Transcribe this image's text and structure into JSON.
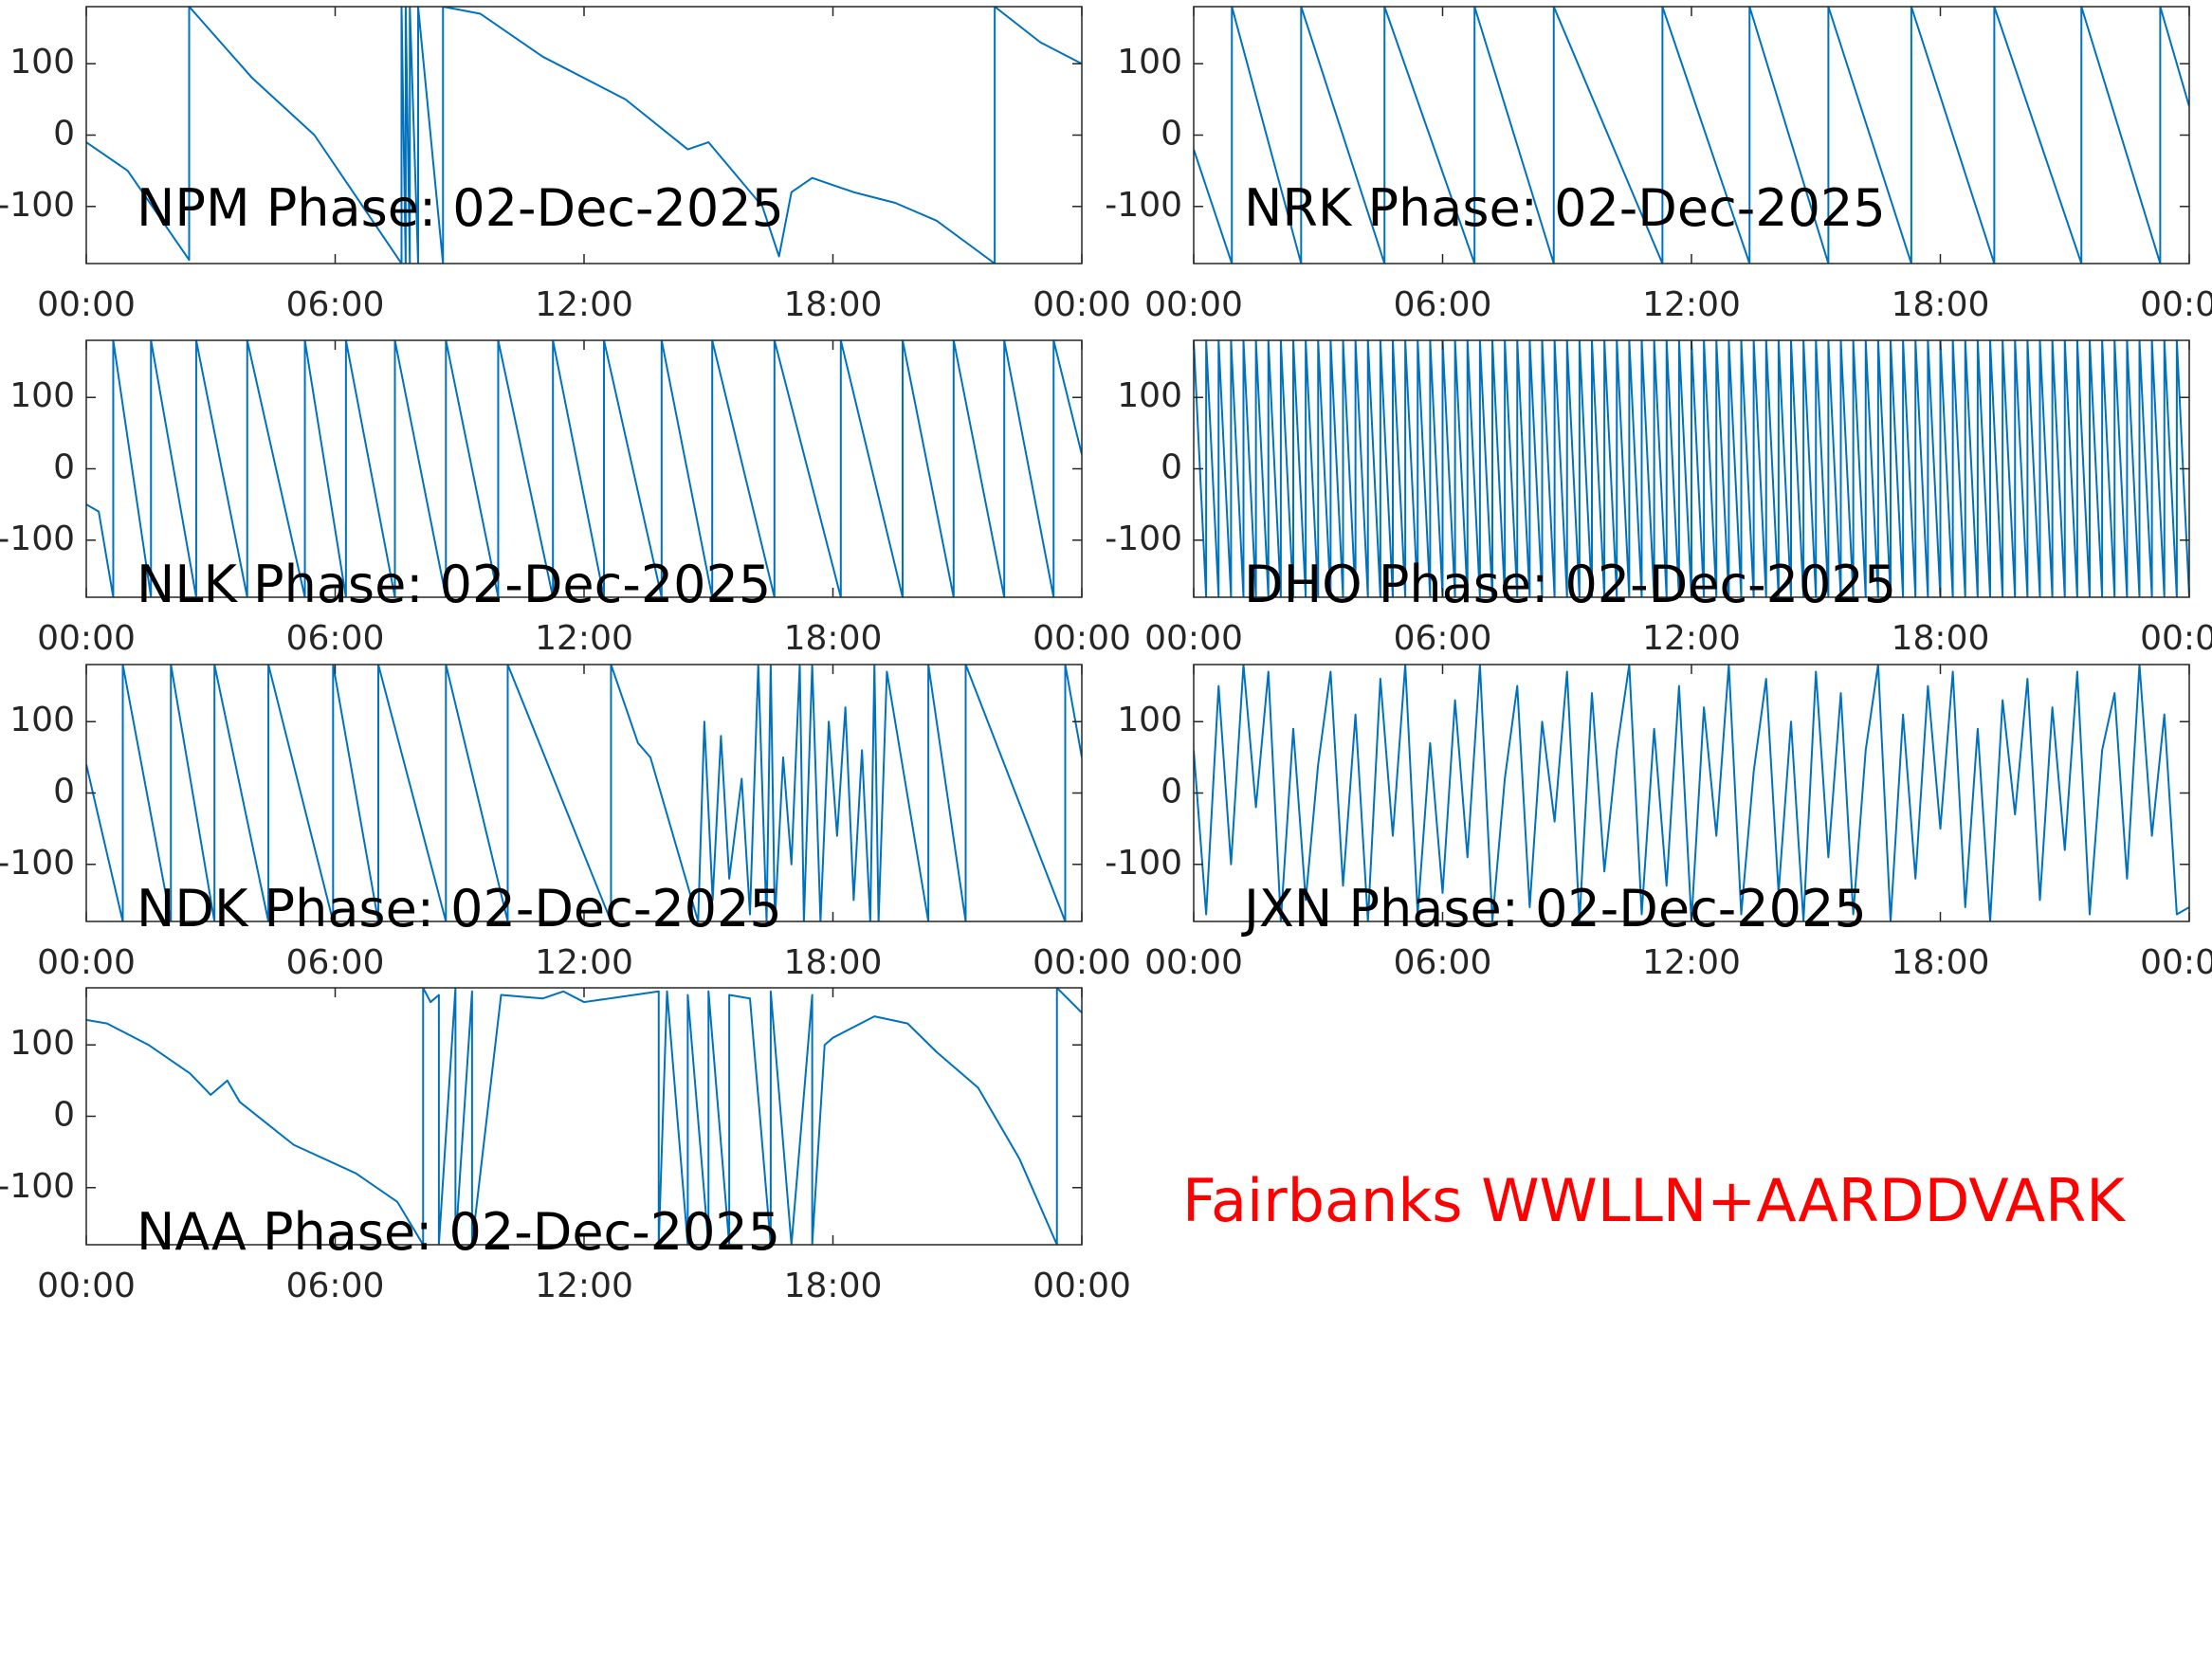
{
  "chart_data": [
    {
      "type": "line",
      "title": "NPM Phase: 02-Dec-2025",
      "color": "#0072bd",
      "xlim": [
        0,
        24
      ],
      "ylim": [
        -180,
        180
      ],
      "xticks": [
        {
          "value": 0,
          "label": "00:00"
        },
        {
          "value": 6,
          "label": "06:00"
        },
        {
          "value": 12,
          "label": "12:00"
        },
        {
          "value": 18,
          "label": "18:00"
        },
        {
          "value": 24,
          "label": "00:00"
        }
      ],
      "yticks": [
        -100,
        0,
        100
      ],
      "x": [
        0,
        1,
        2.48,
        2.48,
        4,
        5.5,
        7.6,
        7.6,
        7.7,
        7.7,
        7.8,
        7.8,
        8,
        8,
        8.6,
        8.6,
        9.5,
        11,
        13,
        14.5,
        15,
        16.3,
        16.7,
        17,
        17.5,
        18.5,
        19.5,
        20.5,
        21.9,
        21.9,
        23,
        24
      ],
      "values": [
        -10,
        -50,
        -175,
        180,
        80,
        0,
        -180,
        180,
        -180,
        180,
        -180,
        180,
        -180,
        180,
        -180,
        180,
        170,
        110,
        50,
        -20,
        -10,
        -100,
        -170,
        -80,
        -60,
        -80,
        -95,
        -120,
        -180,
        180,
        130,
        100
      ]
    },
    {
      "type": "line",
      "title": "NRK Phase: 02-Dec-2025",
      "color": "#0072bd",
      "xlim": [
        0,
        24
      ],
      "ylim": [
        -180,
        180
      ],
      "xticks": [
        {
          "value": 0,
          "label": "00:00"
        },
        {
          "value": 6,
          "label": "06:00"
        },
        {
          "value": 12,
          "label": "12:00"
        },
        {
          "value": 18,
          "label": "18:00"
        },
        {
          "value": 24,
          "label": "00:00"
        }
      ],
      "yticks": [
        -100,
        0,
        100
      ],
      "x": [
        0,
        0.92,
        0.92,
        2.59,
        2.59,
        4.6,
        4.6,
        6.77,
        6.77,
        8.68,
        8.68,
        11.3,
        11.3,
        13.4,
        13.4,
        15.3,
        15.3,
        17.3,
        17.3,
        19.3,
        19.3,
        21.4,
        21.4,
        23.3,
        23.3,
        24
      ],
      "values": [
        -20,
        -180,
        180,
        -180,
        180,
        -180,
        180,
        -180,
        180,
        -180,
        180,
        -180,
        180,
        -180,
        180,
        -180,
        180,
        -180,
        180,
        -180,
        180,
        -180,
        180,
        -180,
        180,
        40
      ]
    },
    {
      "type": "line",
      "title": "NLK Phase: 02-Dec-2025",
      "color": "#0072bd",
      "xlim": [
        0,
        24
      ],
      "ylim": [
        -180,
        180
      ],
      "xticks": [
        {
          "value": 0,
          "label": "00:00"
        },
        {
          "value": 6,
          "label": "06:00"
        },
        {
          "value": 12,
          "label": "12:00"
        },
        {
          "value": 18,
          "label": "18:00"
        },
        {
          "value": 24,
          "label": "00:00"
        }
      ],
      "yticks": [
        -100,
        0,
        100
      ],
      "x": [
        0,
        0.3,
        0.65,
        0.65,
        1.56,
        1.56,
        2.65,
        2.65,
        3.88,
        3.88,
        5.27,
        5.27,
        6.26,
        6.26,
        7.44,
        7.44,
        8.67,
        8.67,
        9.93,
        9.93,
        11.25,
        11.25,
        12.48,
        12.48,
        13.87,
        13.87,
        15.09,
        15.09,
        16.59,
        16.59,
        18.19,
        18.19,
        19.68,
        19.68,
        20.91,
        20.91,
        22.13,
        22.13,
        23.32,
        23.32,
        24
      ],
      "values": [
        -50,
        -60,
        -180,
        180,
        -180,
        180,
        -180,
        180,
        -180,
        180,
        -180,
        180,
        -180,
        180,
        -180,
        180,
        -180,
        180,
        -180,
        180,
        -180,
        180,
        -180,
        180,
        -180,
        180,
        -180,
        180,
        -180,
        180,
        -180,
        180,
        -180,
        180,
        -180,
        180,
        -180,
        180,
        -180,
        180,
        20
      ]
    },
    {
      "type": "line",
      "title": "DHO Phase: 02-Dec-2025",
      "color": "#0072bd",
      "xlim": [
        0,
        24
      ],
      "ylim": [
        -180,
        180
      ],
      "xticks": [
        {
          "value": 0,
          "label": "00:00"
        },
        {
          "value": 6,
          "label": "06:00"
        },
        {
          "value": 12,
          "label": "12:00"
        },
        {
          "value": 18,
          "label": "18:00"
        },
        {
          "value": 24,
          "label": "00:00"
        }
      ],
      "yticks": [
        -100,
        0,
        100
      ],
      "x": [
        0,
        0.3,
        0.3,
        0.6,
        0.6,
        0.9,
        0.9,
        1.2,
        1.2,
        1.5,
        1.5,
        1.8,
        1.8,
        2.1,
        2.1,
        2.4,
        2.4,
        2.7,
        2.7,
        3,
        3,
        3.3,
        3.3,
        3.6,
        3.6,
        3.9,
        3.9,
        4.2,
        4.2,
        4.5,
        4.5,
        4.8,
        4.8,
        5.1,
        5.1,
        5.4,
        5.4,
        5.7,
        5.7,
        6,
        6,
        6.3,
        6.3,
        6.6,
        6.6,
        6.9,
        6.9,
        7.2,
        7.2,
        7.5,
        7.5,
        7.8,
        7.8,
        8.1,
        8.1,
        8.4,
        8.4,
        8.7,
        8.7,
        9,
        9,
        9.3,
        9.3,
        9.6,
        9.6,
        9.9,
        9.9,
        10.2,
        10.2,
        10.5,
        10.5,
        10.8,
        10.8,
        11.1,
        11.1,
        11.4,
        11.4,
        11.7,
        11.7,
        12,
        12,
        12.3,
        12.3,
        12.6,
        12.6,
        12.9,
        12.9,
        13.2,
        13.2,
        13.5,
        13.5,
        13.8,
        13.8,
        14.1,
        14.1,
        14.4,
        14.4,
        14.7,
        14.7,
        15,
        15,
        15.3,
        15.3,
        15.6,
        15.6,
        15.9,
        15.9,
        16.2,
        16.2,
        16.5,
        16.5,
        16.8,
        16.8,
        17.1,
        17.1,
        17.4,
        17.4,
        17.7,
        17.7,
        18,
        18,
        18.3,
        18.3,
        18.6,
        18.6,
        18.9,
        18.9,
        19.2,
        19.2,
        19.5,
        19.5,
        19.8,
        19.8,
        20.1,
        20.1,
        20.4,
        20.4,
        20.7,
        20.7,
        21,
        21,
        21.3,
        21.3,
        21.6,
        21.6,
        21.9,
        21.9,
        22.2,
        22.2,
        22.5,
        22.5,
        22.8,
        22.8,
        23.1,
        23.1,
        23.4,
        23.4,
        23.7,
        23.7,
        24
      ],
      "values": [
        180,
        -180,
        180,
        -180,
        180,
        -180,
        180,
        -180,
        180,
        -180,
        180,
        -180,
        180,
        -180,
        180,
        -180,
        180,
        -180,
        180,
        -180,
        180,
        -180,
        180,
        -180,
        180,
        -180,
        180,
        -180,
        180,
        -180,
        180,
        -180,
        180,
        -180,
        180,
        -180,
        180,
        -180,
        180,
        -180,
        180,
        -180,
        180,
        -180,
        180,
        -180,
        180,
        -180,
        180,
        -180,
        180,
        -180,
        180,
        -180,
        180,
        -180,
        180,
        -180,
        180,
        -180,
        180,
        -180,
        180,
        -180,
        180,
        -180,
        180,
        -180,
        180,
        -180,
        180,
        -180,
        180,
        -180,
        180,
        -180,
        180,
        -180,
        180,
        -180,
        180,
        -180,
        180,
        -180,
        180,
        -180,
        180,
        -180,
        180,
        -180,
        180,
        -180,
        180,
        -180,
        180,
        -180,
        180,
        -180,
        180,
        -180,
        180,
        -180,
        180,
        -180,
        180,
        -180,
        180,
        -180,
        180,
        -180,
        180,
        -180,
        180,
        -180,
        180,
        -180,
        180,
        -180,
        180,
        -180,
        180,
        -180,
        180,
        -180,
        180,
        -180,
        180,
        -180,
        180,
        -180,
        180,
        -180,
        180,
        -180,
        180,
        -180,
        180,
        -180,
        180,
        -180,
        180,
        -180,
        180,
        -180,
        180,
        -180,
        180,
        -180,
        180,
        -180,
        180,
        -180,
        180,
        -180,
        180,
        -180,
        180,
        -180,
        180,
        -180
      ]
    },
    {
      "type": "line",
      "title": "NDK Phase: 02-Dec-2025",
      "color": "#0072bd",
      "xlim": [
        0,
        24
      ],
      "ylim": [
        -180,
        180
      ],
      "xticks": [
        {
          "value": 0,
          "label": "00:00"
        },
        {
          "value": 6,
          "label": "06:00"
        },
        {
          "value": 12,
          "label": "12:00"
        },
        {
          "value": 18,
          "label": "18:00"
        },
        {
          "value": 24,
          "label": "00:00"
        }
      ],
      "yticks": [
        -100,
        0,
        100
      ],
      "x": [
        0,
        0.88,
        0.88,
        2.04,
        2.04,
        3.09,
        3.09,
        4.39,
        4.39,
        5.95,
        5.95,
        7.04,
        7.04,
        8.67,
        8.67,
        10.16,
        10.16,
        12.65,
        12.65,
        13.3,
        13.6,
        14.75,
        14.9,
        15.1,
        15.3,
        15.5,
        15.8,
        16,
        16.2,
        16.4,
        16.5,
        16.6,
        16.8,
        17,
        17.2,
        17.3,
        17.5,
        17.7,
        17.9,
        18.1,
        18.3,
        18.5,
        18.7,
        18.9,
        19,
        19.1,
        19.3,
        20.3,
        20.3,
        21.2,
        21.2,
        23.6,
        23.6,
        24
      ],
      "values": [
        40,
        -180,
        180,
        -180,
        180,
        -180,
        180,
        -180,
        180,
        -180,
        180,
        -180,
        180,
        -180,
        180,
        -180,
        180,
        -180,
        180,
        70,
        50,
        -180,
        100,
        -150,
        80,
        -120,
        20,
        -170,
        180,
        -180,
        180,
        -180,
        50,
        -100,
        180,
        -180,
        180,
        -180,
        100,
        -60,
        120,
        -150,
        60,
        -180,
        180,
        -180,
        170,
        -180,
        180,
        -180,
        180,
        -180,
        180,
        50
      ]
    },
    {
      "type": "line",
      "title": "JXN Phase: 02-Dec-2025",
      "color": "#0072bd",
      "xlim": [
        0,
        24
      ],
      "ylim": [
        -180,
        180
      ],
      "xticks": [
        {
          "value": 0,
          "label": "00:00"
        },
        {
          "value": 6,
          "label": "06:00"
        },
        {
          "value": 12,
          "label": "12:00"
        },
        {
          "value": 18,
          "label": "18:00"
        },
        {
          "value": 24,
          "label": "00:00"
        }
      ],
      "yticks": [
        -100,
        0,
        100
      ],
      "x": [
        0,
        0.3,
        0.6,
        0.9,
        1.2,
        1.5,
        1.8,
        2.1,
        2.4,
        2.7,
        3,
        3.3,
        3.6,
        3.9,
        4.2,
        4.5,
        4.8,
        5.1,
        5.4,
        5.7,
        6,
        6.3,
        6.6,
        6.9,
        7.2,
        7.5,
        7.8,
        8.1,
        8.4,
        8.7,
        9,
        9.3,
        9.6,
        9.9,
        10.2,
        10.5,
        10.8,
        11.1,
        11.4,
        11.7,
        12,
        12.3,
        12.6,
        12.9,
        13.2,
        13.5,
        13.8,
        14.1,
        14.4,
        14.7,
        15,
        15.3,
        15.6,
        15.9,
        16.2,
        16.5,
        16.8,
        17.1,
        17.4,
        17.7,
        18,
        18.3,
        18.6,
        18.9,
        19.2,
        19.5,
        19.8,
        20.1,
        20.4,
        20.7,
        21,
        21.3,
        21.6,
        21.9,
        22.2,
        22.5,
        22.8,
        23.1,
        23.4,
        23.7,
        24
      ],
      "values": [
        60,
        -170,
        150,
        -100,
        180,
        -20,
        170,
        -180,
        90,
        -150,
        40,
        170,
        -130,
        110,
        -180,
        160,
        -60,
        180,
        -170,
        70,
        -140,
        130,
        -90,
        180,
        -180,
        20,
        150,
        -160,
        100,
        -40,
        170,
        -180,
        140,
        -110,
        60,
        180,
        -170,
        90,
        -130,
        150,
        -180,
        120,
        -60,
        180,
        -170,
        30,
        160,
        -140,
        100,
        -180,
        170,
        -90,
        140,
        -170,
        60,
        180,
        -180,
        110,
        -120,
        150,
        -50,
        170,
        -160,
        90,
        -180,
        130,
        -30,
        160,
        -150,
        120,
        -80,
        170,
        -170,
        60,
        140,
        -120,
        180,
        -60,
        110,
        -170,
        -160
      ]
    },
    {
      "type": "line",
      "title": "NAA Phase: 02-Dec-2025",
      "color": "#0072bd",
      "xlim": [
        0,
        24
      ],
      "ylim": [
        -180,
        180
      ],
      "xticks": [
        {
          "value": 0,
          "label": "00:00"
        },
        {
          "value": 6,
          "label": "06:00"
        },
        {
          "value": 12,
          "label": "12:00"
        },
        {
          "value": 18,
          "label": "18:00"
        },
        {
          "value": 24,
          "label": "00:00"
        }
      ],
      "yticks": [
        -100,
        0,
        100
      ],
      "x": [
        0,
        0.5,
        1.5,
        2.5,
        3,
        3.4,
        3.7,
        5,
        6.5,
        7.5,
        8.12,
        8.12,
        8.3,
        8.5,
        8.5,
        8.9,
        8.9,
        9.3,
        9.3,
        10,
        11,
        11.5,
        12,
        13.8,
        13.8,
        14,
        14.5,
        14.5,
        15,
        15,
        15.5,
        15.5,
        16,
        16.5,
        16.5,
        17,
        17.5,
        17.5,
        17.8,
        18,
        19,
        19.8,
        20.5,
        21.5,
        22.5,
        23.4,
        23.4,
        24
      ],
      "values": [
        135,
        130,
        100,
        60,
        30,
        50,
        20,
        -40,
        -80,
        -120,
        -180,
        180,
        160,
        170,
        -180,
        180,
        -180,
        175,
        -180,
        170,
        165,
        175,
        160,
        175,
        -180,
        175,
        -180,
        170,
        -180,
        175,
        -180,
        170,
        165,
        -180,
        175,
        -180,
        170,
        -180,
        100,
        110,
        140,
        130,
        90,
        40,
        -60,
        -180,
        180,
        145
      ]
    }
  ],
  "annotation": {
    "text": "Fairbanks WWLLN+AARDDVARK",
    "color": "#ff0000"
  }
}
